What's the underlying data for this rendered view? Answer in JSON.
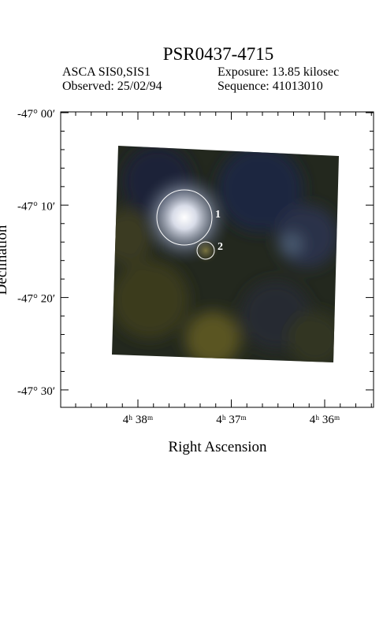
{
  "header": {
    "title": "PSR0437-4715",
    "instrument": "ASCA SIS0,SIS1",
    "exposure": "Exposure: 13.85 kilosec",
    "observed": "Observed: 25/02/94",
    "sequence": "Sequence: 41013010"
  },
  "axes": {
    "y_label": "Declination",
    "x_label": "Right Ascension",
    "y_ticks": [
      "-47° 00′",
      "-47° 10′",
      "-47° 20′",
      "-47° 30′"
    ],
    "x_ticks": [
      "4ʰ 38ᵐ",
      "4ʰ 37ᵐ",
      "4ʰ 36ᵐ"
    ]
  },
  "sources": [
    {
      "label": "1"
    },
    {
      "label": "2"
    }
  ]
}
